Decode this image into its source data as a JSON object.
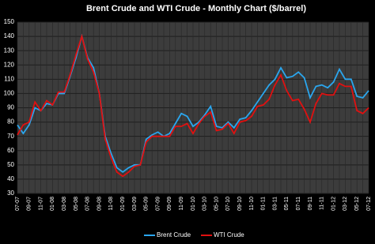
{
  "chart_data": {
    "type": "line",
    "title": "Brent Crude and WTI Crude - Monthly Chart ($/barrel)",
    "categories": [
      "07-07",
      null,
      "09-07",
      null,
      "11-07",
      null,
      "01-08",
      null,
      "03-08",
      null,
      "05-08",
      null,
      "07-08",
      null,
      "09-08",
      null,
      "11-08",
      null,
      "01-09",
      null,
      "03-09",
      null,
      "05-09",
      null,
      "07-09",
      null,
      "09-09",
      null,
      "11-09",
      null,
      "01-10",
      null,
      "03-10",
      null,
      "05-10",
      null,
      "07-10",
      null,
      "09-10",
      null,
      "11-10",
      null,
      "01-11",
      null,
      "03-11",
      null,
      "05-11",
      null,
      "07-11",
      null,
      "09-11",
      null,
      "11-11",
      null,
      "01-12",
      null,
      "03-12",
      null,
      "05-12",
      null,
      "07-12"
    ],
    "series": [
      {
        "name": "Brent Crude",
        "color": "#2aa6ee",
        "values": [
          78,
          72,
          78,
          90,
          88,
          93,
          92,
          100,
          100,
          112,
          125,
          140,
          125,
          118,
          100,
          70,
          58,
          48,
          45,
          48,
          50,
          50,
          68,
          71,
          73,
          70,
          72,
          79,
          86,
          84,
          77,
          80,
          85,
          91,
          77,
          76,
          80,
          76,
          82,
          83,
          88,
          94,
          100,
          106,
          110,
          118,
          111,
          112,
          115,
          111,
          97,
          105,
          106,
          104,
          108,
          117,
          110,
          110,
          98,
          97,
          102
        ]
      },
      {
        "name": "WTI Crude",
        "color": "#e01010",
        "values": [
          71,
          78,
          80,
          94,
          88,
          95,
          92,
          101,
          101,
          113,
          127,
          140,
          124,
          115,
          100,
          68,
          55,
          45,
          42,
          45,
          49,
          50,
          66,
          70,
          70,
          70,
          70,
          77,
          77,
          79,
          72,
          79,
          84,
          87,
          74,
          75,
          79,
          72,
          80,
          81,
          84,
          91,
          92,
          96,
          106,
          113,
          102,
          95,
          96,
          89,
          80,
          93,
          100,
          99,
          99,
          107,
          105,
          105,
          88,
          86,
          90
        ]
      }
    ],
    "ylim": [
      30,
      150
    ],
    "yticks": [
      30,
      40,
      50,
      60,
      70,
      80,
      90,
      100,
      110,
      120,
      130,
      140,
      150
    ],
    "grid": true,
    "legend": "bottom"
  }
}
